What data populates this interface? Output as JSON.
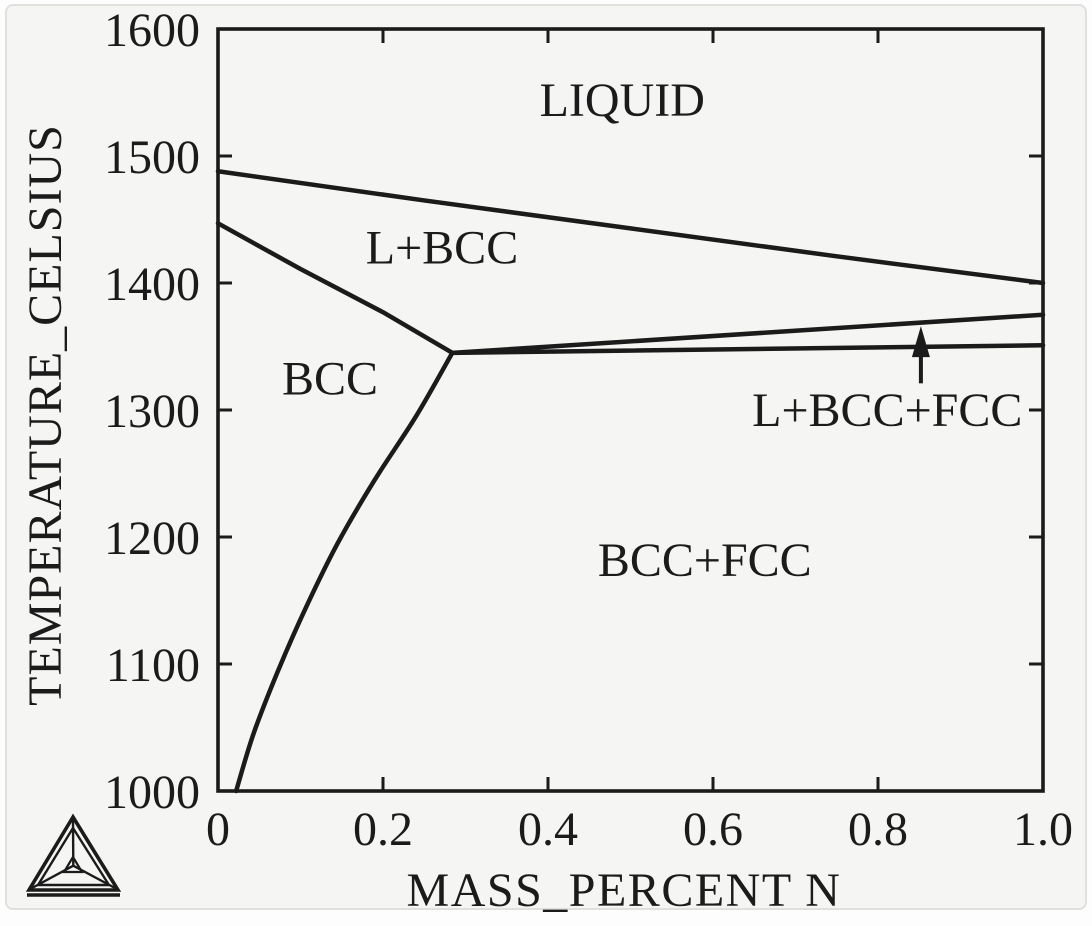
{
  "figure": {
    "background": "#fdfdfd",
    "card_fill": "#f5f5f3",
    "card_border": "#e0e0de",
    "ink": "#1b1b1b"
  },
  "chart_data": {
    "type": "line",
    "title": "",
    "xlabel": "MASS_PERCENT N",
    "ylabel": "TEMPERATURE_CELSIUS",
    "xlim": [
      0,
      1.0
    ],
    "ylim": [
      1000,
      1600
    ],
    "xticks": [
      0,
      0.2,
      0.4,
      0.6,
      0.8,
      1.0
    ],
    "xtick_labels": [
      "0",
      "0.2",
      "0.4",
      "0.6",
      "0.8",
      "1.0"
    ],
    "yticks": [
      1000,
      1100,
      1200,
      1300,
      1400,
      1500,
      1600
    ],
    "ytick_labels": [
      "1000",
      "1100",
      "1200",
      "1300",
      "1400",
      "1500",
      "1600"
    ],
    "grid": false,
    "legend": false,
    "series": [
      {
        "name": "liquidus-line",
        "smooth": false,
        "points": [
          [
            0,
            1488
          ],
          [
            0.25,
            1465
          ],
          [
            0.5,
            1443
          ],
          [
            0.75,
            1421
          ],
          [
            1.0,
            1400
          ]
        ]
      },
      {
        "name": "bcc-liquid-boundary",
        "smooth": false,
        "points": [
          [
            0,
            1447
          ],
          [
            0.1,
            1411
          ],
          [
            0.2,
            1377
          ],
          [
            0.284,
            1345
          ]
        ]
      },
      {
        "name": "bcc-solvus-boundary",
        "smooth": true,
        "points": [
          [
            0.284,
            1345
          ],
          [
            0.24,
            1295
          ],
          [
            0.19,
            1245
          ],
          [
            0.145,
            1195
          ],
          [
            0.107,
            1145
          ],
          [
            0.073,
            1095
          ],
          [
            0.043,
            1045
          ],
          [
            0.022,
            1000
          ]
        ]
      },
      {
        "name": "bcc-fcc-top-boundary",
        "smooth": false,
        "points": [
          [
            0.284,
            1345
          ],
          [
            1.0,
            1351
          ]
        ]
      },
      {
        "name": "liquid-fcc-boundary",
        "smooth": false,
        "points": [
          [
            0.284,
            1345
          ],
          [
            1.0,
            1375
          ]
        ]
      }
    ],
    "region_labels": [
      {
        "name": "region-label-liquid",
        "text": "LIQUID",
        "x": 0.49,
        "y": 1544,
        "anchor": "middle"
      },
      {
        "name": "region-label-l-bcc",
        "text": "L+BCC",
        "x": 0.2715,
        "y": 1428,
        "anchor": "middle"
      },
      {
        "name": "region-label-bcc",
        "text": "BCC",
        "x": 0.1358,
        "y": 1325,
        "anchor": "middle"
      },
      {
        "name": "region-label-bcc-fcc",
        "text": "BCC+FCC",
        "x": 0.59,
        "y": 1182,
        "anchor": "middle"
      },
      {
        "name": "region-label-l-bcc-fcc",
        "text": "L+BCC+FCC",
        "x": 0.975,
        "y": 1300,
        "anchor": "end"
      }
    ],
    "annotation_arrow": {
      "x": 0.852,
      "y_from": 1321,
      "y_to": 1366
    }
  }
}
